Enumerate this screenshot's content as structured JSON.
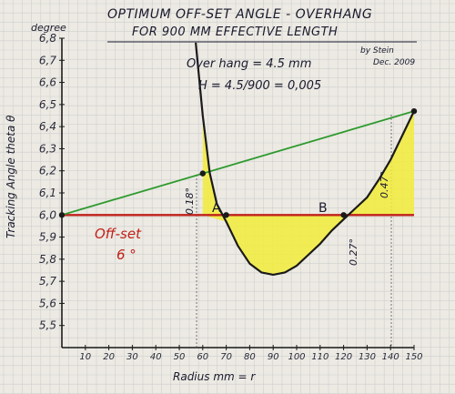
{
  "chart_data": {
    "type": "line",
    "title": "OPTIMUM OFF-SET ANGLE - OVERHANG",
    "subtitle": "FOR 900 MM EFFECTIVE LENGTH",
    "byline": "by Stein",
    "date": "Dec. 2009",
    "y_unit": "degree",
    "ylabel": "Tracking Angle theta θ",
    "xlabel": "Radius  mm = r",
    "x_ticks": [
      "10",
      "20",
      "30",
      "40",
      "50",
      "60",
      "70",
      "80",
      "90",
      "100",
      "110",
      "120",
      "130",
      "140",
      "150"
    ],
    "y_ticks": [
      "5,5",
      "5,6",
      "5,7",
      "5,8",
      "5,9",
      "6,0",
      "6,1",
      "6,2",
      "6,3",
      "6,4",
      "6,5",
      "6,6",
      "6,7",
      "6,8"
    ],
    "xlim": [
      0,
      150
    ],
    "ylim": [
      5.4,
      6.8
    ],
    "grid": true,
    "annotations": {
      "overhang": "Over hang = 4.5  mm",
      "h_formula": "H = 4.5/900 = 0,005",
      "offset_label": "Off-set",
      "offset_value": "6 °",
      "point_a": "A",
      "point_b": "B",
      "dev_left": "0.18°",
      "dev_min": "0.27°",
      "dev_right": "0.47°"
    },
    "series": [
      {
        "name": "",
        "color": "#1a1a1a",
        "x": [
          57,
          60,
          63,
          66,
          70,
          75,
          80,
          85,
          90,
          95,
          100,
          105,
          110,
          115,
          120,
          125,
          130,
          135,
          140,
          145,
          150
        ],
        "y": [
          6.78,
          6.45,
          6.19,
          6.05,
          5.97,
          5.86,
          5.78,
          5.74,
          5.73,
          5.74,
          5.77,
          5.82,
          5.87,
          5.93,
          5.98,
          6.03,
          6.08,
          6.16,
          6.25,
          6.36,
          6.47
        ]
      },
      {
        "name": "",
        "color": "#2e9a2e",
        "x": [
          0,
          150
        ],
        "y": [
          6.0,
          6.47
        ]
      },
      {
        "name": "",
        "color": "#c0201a",
        "x": [
          0,
          150
        ],
        "y": [
          6.0,
          6.0
        ]
      }
    ],
    "colors": {
      "fill": "#f2ec3a",
      "curve": "#1a1a1a",
      "tangent": "#2e9a2e",
      "offset": "#c0201a",
      "paper": "#eceae3"
    }
  }
}
